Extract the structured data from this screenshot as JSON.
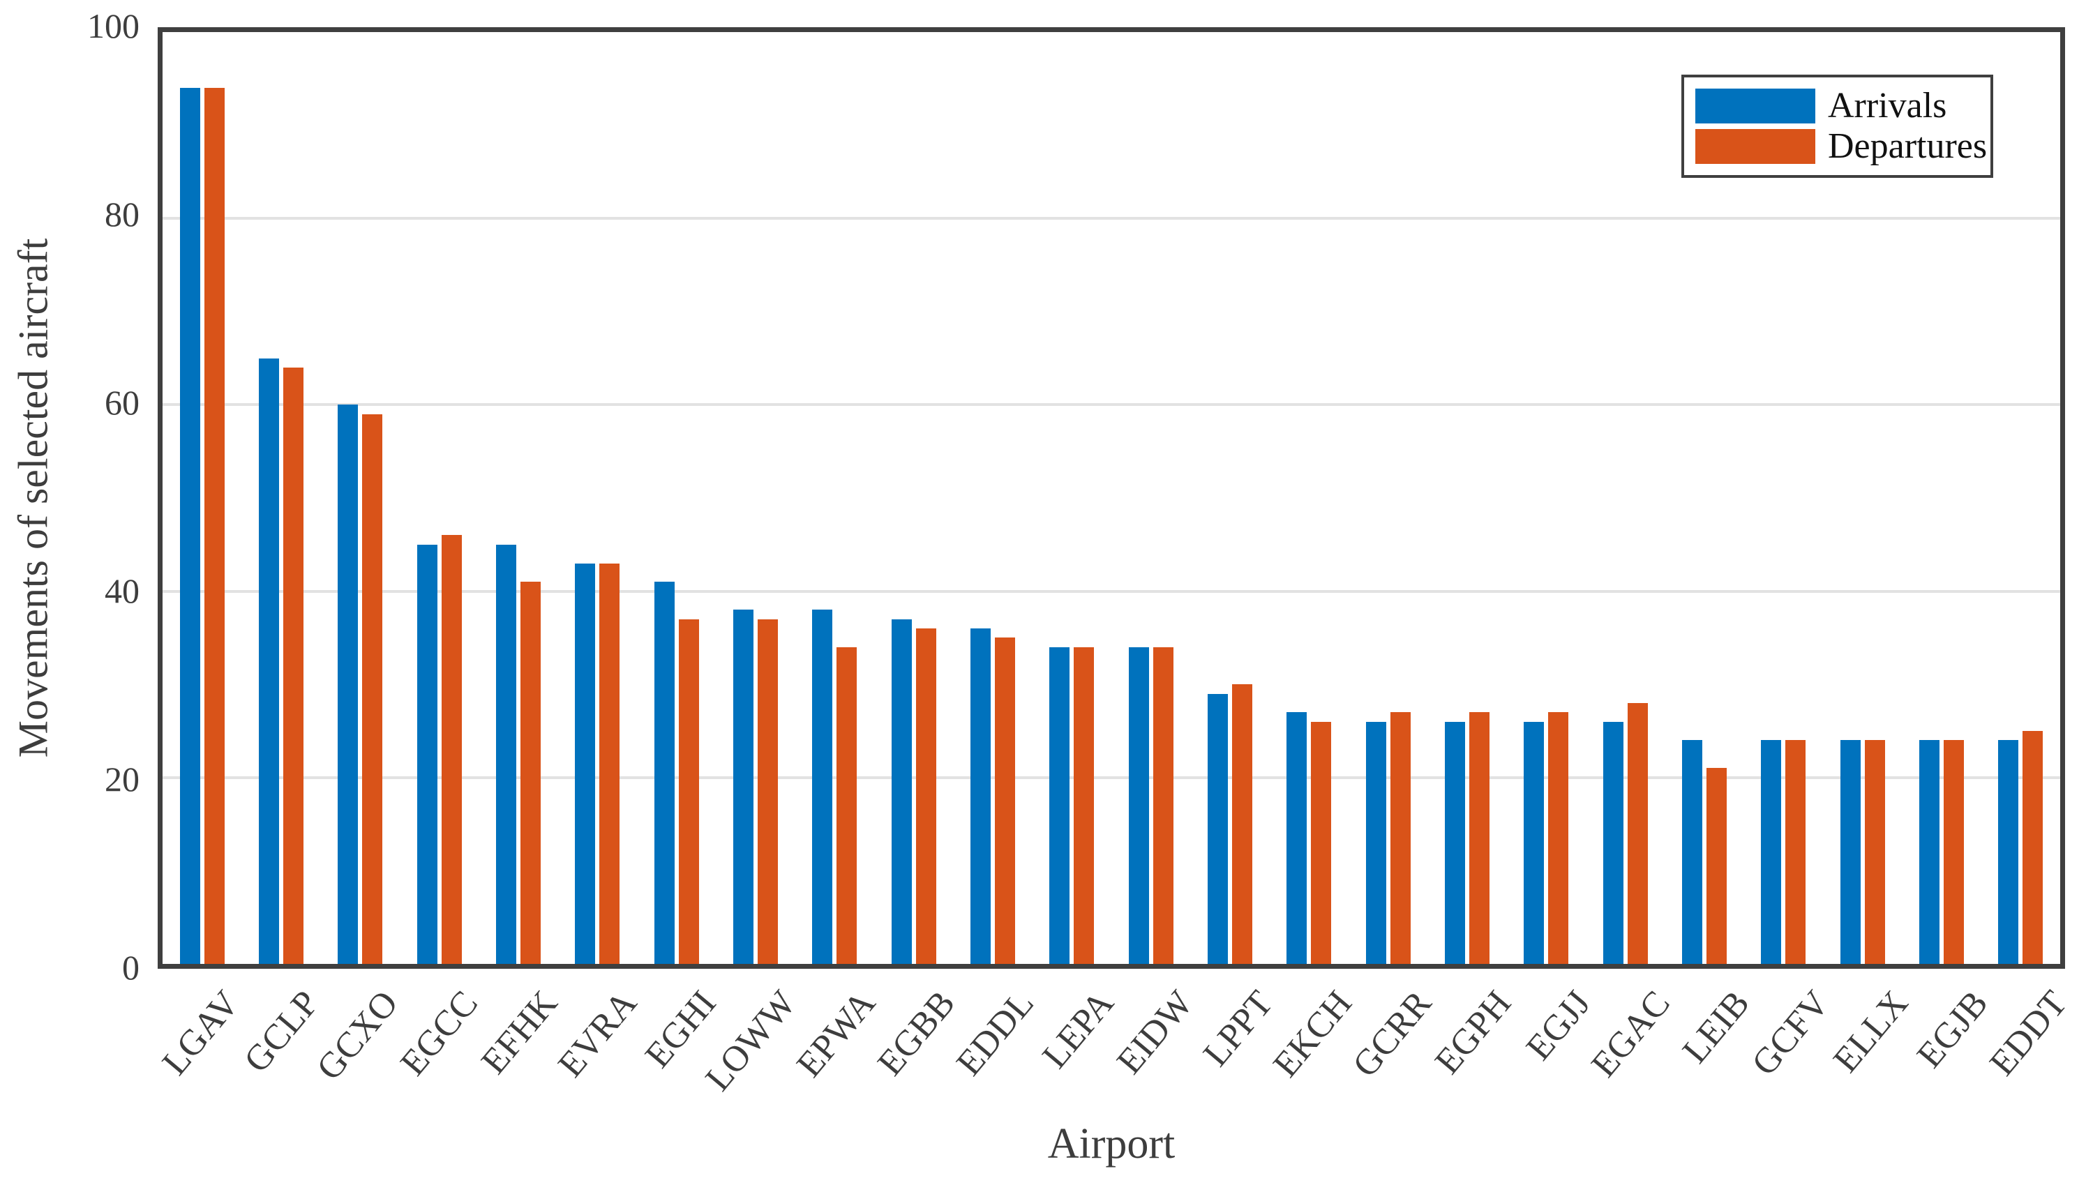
{
  "chart_data": {
    "type": "bar",
    "title": "",
    "xlabel": "Airport",
    "ylabel": "Movements of selected aircraft",
    "ylim": [
      0,
      100
    ],
    "yticks": [
      0,
      20,
      40,
      60,
      80,
      100
    ],
    "grid": "horizontal",
    "legend_position": "upper right",
    "categories": [
      "LGAV",
      "GCLP",
      "GCXO",
      "EGCC",
      "EFHK",
      "EVRA",
      "EGHI",
      "LOWW",
      "EPWA",
      "EGBB",
      "EDDL",
      "LEPA",
      "EIDW",
      "LPPT",
      "EKCH",
      "GCRR",
      "EGPH",
      "EGJJ",
      "EGAC",
      "LEIB",
      "GCFV",
      "ELLX",
      "EGJB",
      "EDDT"
    ],
    "series": [
      {
        "name": "Arrivals",
        "color": "#0072BD",
        "values": [
          94,
          65,
          60,
          45,
          45,
          43,
          41,
          38,
          38,
          37,
          36,
          34,
          34,
          29,
          27,
          26,
          26,
          26,
          26,
          24,
          24,
          24,
          24,
          24
        ]
      },
      {
        "name": "Departures",
        "color": "#D95319",
        "values": [
          94,
          64,
          59,
          46,
          41,
          43,
          37,
          37,
          34,
          36,
          35,
          34,
          34,
          30,
          26,
          27,
          27,
          27,
          28,
          21,
          24,
          24,
          24,
          25
        ]
      }
    ]
  },
  "colors": {
    "frame": "#3F3F3F",
    "gridline": "#E2E2E2",
    "tick_text": "#3D3D3D",
    "legend_text": "#111111",
    "background": "#FFFFFF"
  }
}
